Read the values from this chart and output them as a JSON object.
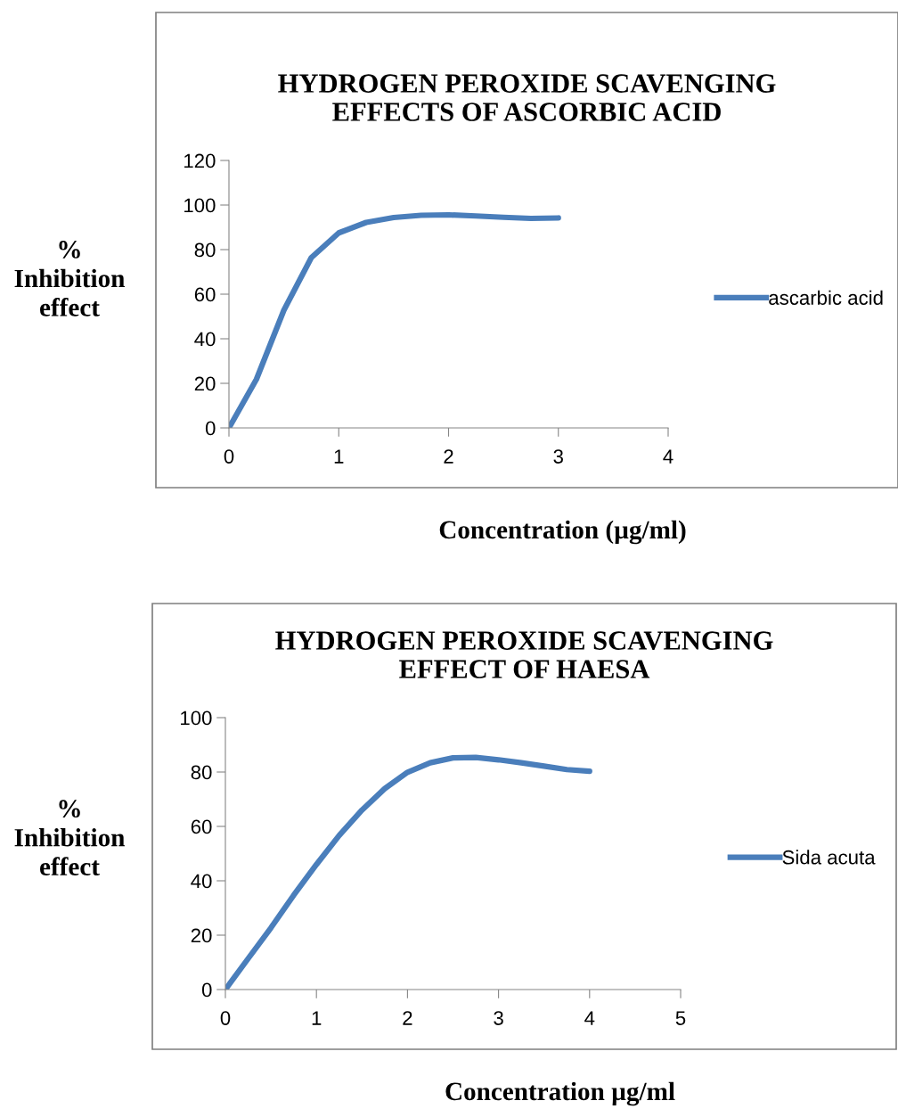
{
  "chart_data": [
    {
      "type": "line",
      "title": "HYDROGEN PEROXIDE SCAVENGING\nEFFECTS OF ASCORBIC ACID",
      "xlabel": "Concentration (µg/ml)",
      "ylabel": "%\nInhibition\neffect",
      "x": [
        0,
        0.25,
        0.5,
        0.75,
        1,
        1.25,
        1.5,
        1.75,
        2,
        2.25,
        2.5,
        2.75,
        3
      ],
      "series": [
        {
          "name": "ascarbic acid",
          "color": "#4a7ebb",
          "values": [
            0,
            21.8,
            52.8,
            76.4,
            87.5,
            92.2,
            94.4,
            95.4,
            95.6,
            95.1,
            94.5,
            94,
            94.2
          ]
        }
      ],
      "xlim": [
        0,
        4
      ],
      "xticks": [
        0,
        1,
        2,
        3,
        4
      ],
      "ylim": [
        0,
        120
      ],
      "yticks": [
        0,
        20,
        40,
        60,
        80,
        100,
        120
      ],
      "grid": false,
      "legend": "right",
      "marker": "none",
      "line_style": "solid"
    },
    {
      "type": "line",
      "title": "HYDROGEN PEROXIDE SCAVENGING\nEFFECT OF HAESA",
      "xlabel": "Concentration µg/ml",
      "ylabel": "%\nInhibition\neffect",
      "x": [
        0,
        0.25,
        0.5,
        0.75,
        1,
        1.25,
        1.5,
        1.75,
        2,
        2.25,
        2.5,
        2.75,
        3,
        3.25,
        3.5,
        3.75,
        4
      ],
      "series": [
        {
          "name": "Sida acuta",
          "color": "#4a7ebb",
          "values": [
            0,
            11.4,
            22.7,
            34.7,
            46,
            56.7,
            66,
            73.9,
            79.9,
            83.4,
            85.2,
            85.4,
            84.5,
            83.4,
            82.2,
            80.9,
            80.3
          ]
        }
      ],
      "xlim": [
        0,
        5
      ],
      "xticks": [
        0,
        1,
        2,
        3,
        4,
        5
      ],
      "ylim": [
        0,
        100
      ],
      "yticks": [
        0,
        20,
        40,
        60,
        80,
        100
      ],
      "grid": false,
      "legend": "right",
      "marker": "none",
      "line_style": "solid"
    }
  ]
}
